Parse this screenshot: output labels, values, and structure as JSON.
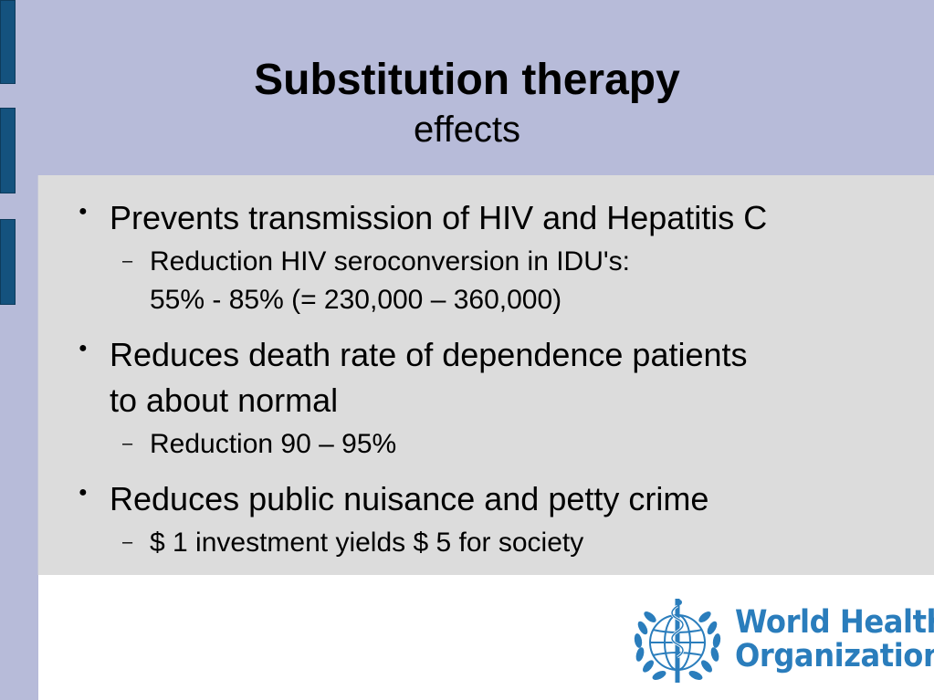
{
  "slide": {
    "title": "Substitution therapy",
    "subtitle": "effects"
  },
  "bullets": [
    {
      "marker": "●",
      "text": "Prevents transmission of HIV and Hepatitis C",
      "subs": [
        {
          "marker": "–",
          "line1": "Reduction HIV seroconversion in IDU's:",
          "line2": "55% - 85% (= 230,000 – 360,000)"
        }
      ]
    },
    {
      "marker": "●",
      "text_line1": "Reduces death rate of dependence patients",
      "text_line2": "to about normal",
      "subs": [
        {
          "marker": "–",
          "line1": "Reduction 90 – 95%"
        }
      ]
    },
    {
      "marker": "●",
      "text": "Reduces public nuisance and petty crime",
      "subs": [
        {
          "marker": "–",
          "line1": "$ 1 investment yields $ 5 for society"
        }
      ]
    }
  ],
  "logo": {
    "name_line1": "World Health",
    "name_line2": "Organization",
    "icon": "who-emblem-icon",
    "color": "#2a7dbc"
  },
  "colors": {
    "background": "#b7bbd9",
    "panel": "#dcdcdc",
    "side_tab": "#14527e"
  }
}
